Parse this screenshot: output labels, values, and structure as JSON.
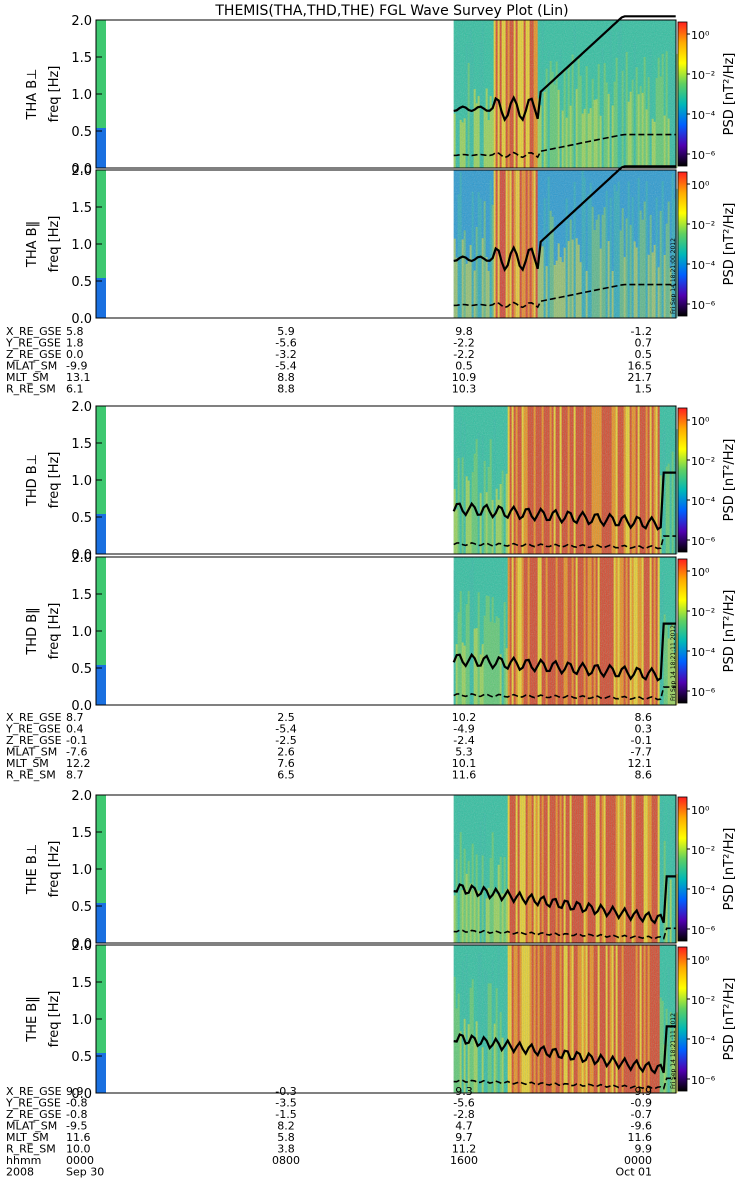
{
  "title": "THEMIS(THA,THD,THE) FGL Wave Survey Plot (Lin)",
  "colors": {
    "trace": "#000000",
    "frame": "#000000",
    "background": "#ffffff"
  },
  "chart_data": {
    "type": "heatmap",
    "xlabel": "",
    "x_range_hours": [
      0,
      24
    ],
    "y_axis": {
      "label": "freq [Hz]",
      "range": [
        0,
        2.0
      ],
      "ticks": [
        "0.0",
        "0.5",
        "1.0",
        "1.5",
        "2.0"
      ]
    },
    "colorbar": {
      "label": "PSD [nT²/Hz]",
      "scale": "log",
      "tick_labels": [
        "10⁰",
        "10⁻²",
        "10⁻⁴",
        "10⁻⁶"
      ],
      "stops": [
        "#ff1e1e",
        "#ffaa00",
        "#ffff00",
        "#60d060",
        "#00b8b8",
        "#0060ff",
        "#5000b0",
        "#000000"
      ]
    },
    "probes": [
      {
        "id": "THA",
        "stamp": "Fri Sep 14 18:21:00 2012",
        "panels": [
          {
            "name": "THA B⊥",
            "label": "THA B⊥",
            "data_start_hour": 14.8
          },
          {
            "name": "THA B‖",
            "label": "THA B‖",
            "data_start_hour": 14.8
          }
        ],
        "ephemeris": {
          "labels": [
            "X_RE_GSE",
            "Y_RE_GSE",
            "Z_RE_GSE",
            "MLAT_SM",
            "MLT_SM",
            "R_RE_SM"
          ],
          "columns": [
            [
              "5.8",
              "1.8",
              "0.0",
              "-9.9",
              "13.1",
              "6.1"
            ],
            [
              "5.9",
              "-5.6",
              "-3.2",
              "-5.4",
              "8.8",
              "8.8"
            ],
            [
              "9.8",
              "-2.2",
              "-2.2",
              "0.5",
              "10.9",
              "10.3"
            ],
            [
              "-1.2",
              "0.7",
              "0.5",
              "16.5",
              "21.7",
              "1.5"
            ]
          ]
        }
      },
      {
        "id": "THD",
        "stamp": "Fri Sep 14 18:21:11 2012",
        "panels": [
          {
            "name": "THD B⊥",
            "label": "THD B⊥",
            "data_start_hour": 14.8
          },
          {
            "name": "THD B‖",
            "label": "THD B‖",
            "data_start_hour": 14.8
          }
        ],
        "ephemeris": {
          "labels": [
            "X_RE_GSE",
            "Y_RE_GSE",
            "Z_RE_GSE",
            "MLAT_SM",
            "MLT_SM",
            "R_RE_SM"
          ],
          "columns": [
            [
              "8.7",
              "0.4",
              "-0.1",
              "-7.6",
              "12.2",
              "8.7"
            ],
            [
              "2.5",
              "-5.4",
              "-2.5",
              "2.6",
              "7.6",
              "6.5"
            ],
            [
              "10.2",
              "-4.9",
              "-2.4",
              "5.3",
              "10.1",
              "11.6"
            ],
            [
              "8.6",
              "0.3",
              "-0.1",
              "-7.7",
              "12.1",
              "8.6"
            ]
          ]
        }
      },
      {
        "id": "THE",
        "stamp": "Fri Sep 14 18:21:11 2012",
        "panels": [
          {
            "name": "THE B⊥",
            "label": "THE B⊥",
            "data_start_hour": 14.8
          },
          {
            "name": "THE B‖",
            "label": "THE B‖",
            "data_start_hour": 14.8
          }
        ],
        "ephemeris": {
          "labels": [
            "X_RE_GSE",
            "Y_RE_GSE",
            "Z_RE_GSE",
            "MLAT_SM",
            "MLT_SM",
            "R_RE_SM",
            "hhmm",
            "2008"
          ],
          "columns": [
            [
              "9.9",
              "-0.8",
              "-0.8",
              "-9.5",
              "11.6",
              "10.0",
              "0000",
              "Sep 30"
            ],
            [
              "-0.3",
              "-3.5",
              "-1.5",
              "8.2",
              "5.8",
              "3.8",
              "0800",
              ""
            ],
            [
              "9.3",
              "-5.6",
              "-2.8",
              "4.7",
              "9.7",
              "11.2",
              "1600",
              ""
            ],
            [
              "9.9",
              "-0.9",
              "-0.7",
              "-9.6",
              "11.6",
              "9.9",
              "0000",
              "Oct 01"
            ]
          ]
        }
      }
    ]
  }
}
